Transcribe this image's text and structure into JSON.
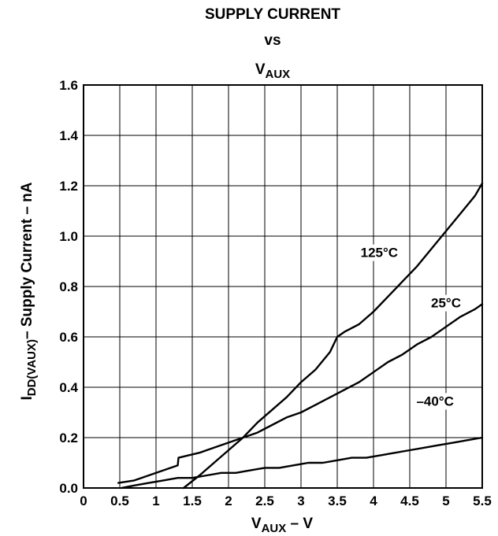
{
  "chart_data": {
    "type": "line",
    "title": {
      "line1": "SUPPLY CURRENT",
      "line2": "vs",
      "line3_main": "V",
      "line3_sub": "AUX"
    },
    "xlabel": {
      "main": "V",
      "sub": "AUX",
      "suffix": " – V"
    },
    "ylabel": {
      "main": "I",
      "sub": "DD(VAUX)",
      "suffix": "– Supply Current – nA"
    },
    "xlim": [
      0,
      5.5
    ],
    "ylim": [
      0,
      1.6
    ],
    "xticks": [
      "0",
      "0.5",
      "1",
      "1.5",
      "2",
      "2.5",
      "3",
      "3.5",
      "4",
      "4.5",
      "5",
      "5.5"
    ],
    "yticks": [
      "0.0",
      "0.2",
      "0.4",
      "0.6",
      "0.8",
      "1.0",
      "1.2",
      "1.4",
      "1.6"
    ],
    "grid": true,
    "series": [
      {
        "name": "125°C",
        "x": [
          1.38,
          1.6,
          1.8,
          2.0,
          2.2,
          2.4,
          2.6,
          2.8,
          3.0,
          3.2,
          3.4,
          3.5,
          3.6,
          3.8,
          4.0,
          4.2,
          4.4,
          4.6,
          4.8,
          5.0,
          5.2,
          5.4,
          5.5
        ],
        "y": [
          0.0,
          0.05,
          0.1,
          0.15,
          0.2,
          0.26,
          0.31,
          0.36,
          0.42,
          0.47,
          0.54,
          0.6,
          0.62,
          0.65,
          0.7,
          0.76,
          0.82,
          0.88,
          0.95,
          1.02,
          1.09,
          1.16,
          1.21
        ]
      },
      {
        "name": "25°C",
        "x": [
          0.48,
          0.7,
          0.9,
          1.1,
          1.3,
          1.31,
          1.6,
          1.8,
          2.0,
          2.2,
          2.4,
          2.6,
          2.8,
          3.0,
          3.2,
          3.4,
          3.6,
          3.8,
          4.0,
          4.2,
          4.4,
          4.6,
          4.8,
          5.0,
          5.2,
          5.4,
          5.5
        ],
        "y": [
          0.02,
          0.03,
          0.05,
          0.07,
          0.09,
          0.12,
          0.14,
          0.16,
          0.18,
          0.2,
          0.22,
          0.25,
          0.28,
          0.3,
          0.33,
          0.36,
          0.39,
          0.42,
          0.46,
          0.5,
          0.53,
          0.57,
          0.6,
          0.64,
          0.68,
          0.71,
          0.73
        ]
      },
      {
        "name": "–40°C",
        "x": [
          0.52,
          0.7,
          0.9,
          1.1,
          1.3,
          1.5,
          1.7,
          1.9,
          2.1,
          2.3,
          2.5,
          2.7,
          2.9,
          3.1,
          3.3,
          3.5,
          3.7,
          3.9,
          4.1,
          4.3,
          4.5,
          4.7,
          4.9,
          5.1,
          5.3,
          5.5
        ],
        "y": [
          0.0,
          0.01,
          0.02,
          0.03,
          0.04,
          0.04,
          0.05,
          0.06,
          0.06,
          0.07,
          0.08,
          0.08,
          0.09,
          0.1,
          0.1,
          0.11,
          0.12,
          0.12,
          0.13,
          0.14,
          0.15,
          0.16,
          0.17,
          0.18,
          0.19,
          0.2
        ]
      }
    ]
  }
}
